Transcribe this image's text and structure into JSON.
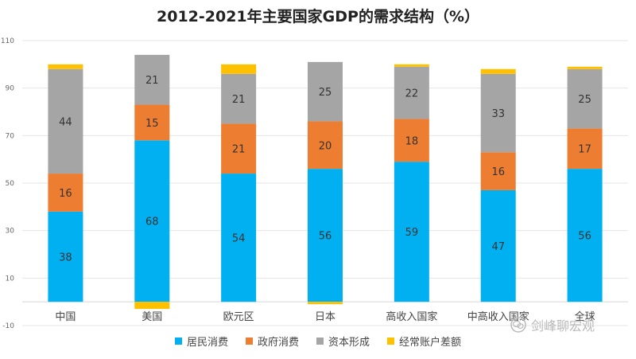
{
  "chart_data": {
    "type": "bar",
    "stacked": true,
    "title": "2012-2021年主要国家GDP的需求结构（%）",
    "categories": [
      "中国",
      "美国",
      "欧元区",
      "日本",
      "高收入国家",
      "中高收入国家",
      "全球"
    ],
    "ylim": [
      -10,
      110
    ],
    "yticks": [
      -10,
      10,
      30,
      50,
      70,
      90,
      110
    ],
    "grid": true,
    "legend_position": "bottom",
    "series": [
      {
        "name": "居民消费",
        "color": "#00b0f0",
        "values": [
          38,
          68,
          54,
          56,
          59,
          47,
          56
        ],
        "show_labels": true
      },
      {
        "name": "政府消费",
        "color": "#ed7d31",
        "values": [
          16,
          15,
          21,
          20,
          18,
          16,
          17
        ],
        "show_labels": true
      },
      {
        "name": "资本形成",
        "color": "#a5a5a5",
        "values": [
          44,
          21,
          21,
          25,
          22,
          33,
          25
        ],
        "show_labels": true
      },
      {
        "name": "经常账户差额",
        "color": "#ffc000",
        "values": [
          2,
          -3,
          4,
          -1,
          1,
          2,
          1
        ],
        "show_labels": false
      }
    ]
  },
  "watermark": {
    "icon": "wechat-icon",
    "text": "剑峰聊宏观"
  }
}
